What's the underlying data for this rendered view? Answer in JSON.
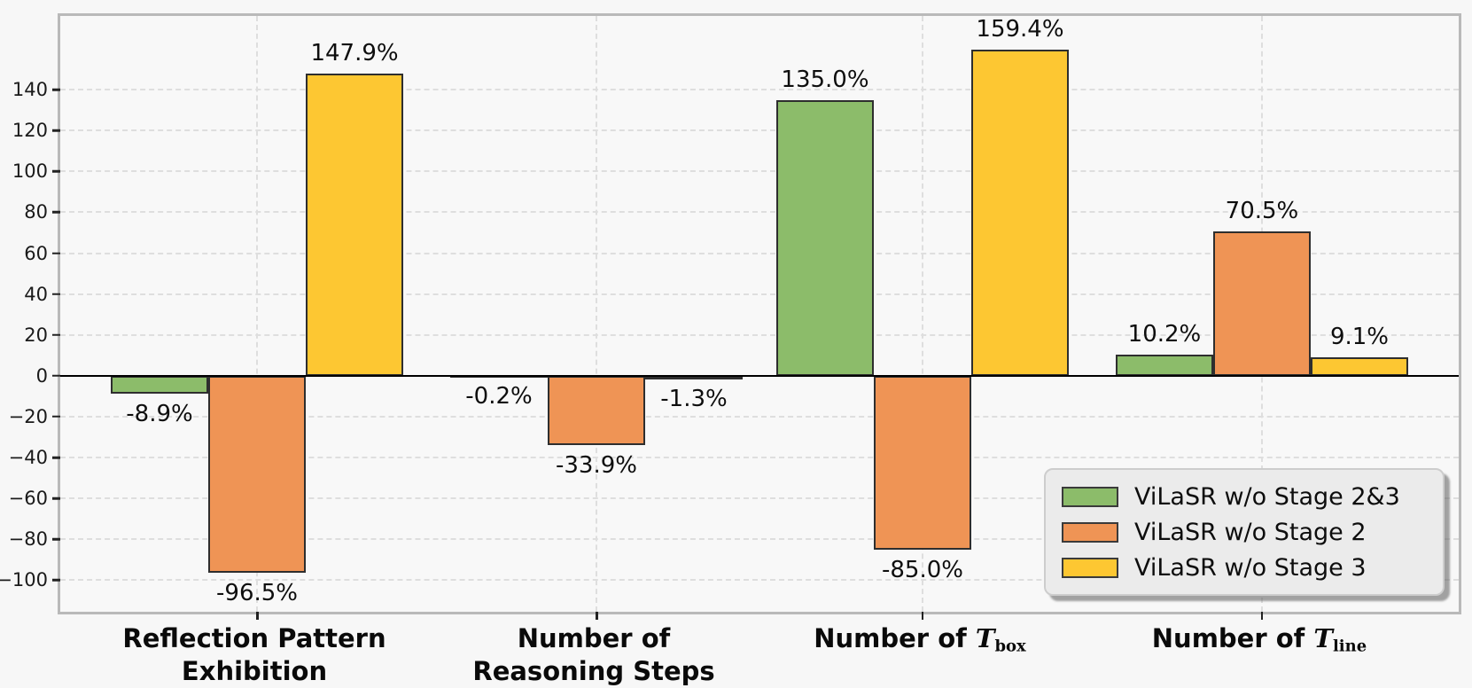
{
  "chart_data": {
    "type": "bar",
    "title": "",
    "xlabel": "",
    "ylabel": "",
    "value_suffix": "%",
    "ylim": [
      -115.4,
      176
    ],
    "yticks": [
      -100,
      -80,
      -60,
      -40,
      -20,
      0,
      20,
      40,
      60,
      80,
      100,
      120,
      140
    ],
    "grid": true,
    "legend_position": "lower right",
    "plot_background": "#f8f8f8",
    "figure_background": "#f7f7f7",
    "categories": [
      {
        "id": "reflection-pattern-exhibition",
        "label_lines": [
          "Reflection Pattern",
          "Exhibition"
        ]
      },
      {
        "id": "number-of-reasoning-steps",
        "label_lines": [
          "Number of",
          "Reasoning Steps"
        ]
      },
      {
        "id": "number-of-t-box",
        "label_lines": [
          "Number of"
        ],
        "math_symbol": "T",
        "math_sub": "box"
      },
      {
        "id": "number-of-t-line",
        "label_lines": [
          "Number of"
        ],
        "math_symbol": "T",
        "math_sub": "line"
      }
    ],
    "series": [
      {
        "name": "ViLaSR w/o Stage 2&3",
        "color": "#8cbc6a",
        "values": [
          -8.9,
          -0.2,
          135.0,
          10.2
        ]
      },
      {
        "name": "ViLaSR w/o Stage 2",
        "color": "#ef9455",
        "values": [
          -96.5,
          -33.9,
          -85.0,
          70.5
        ]
      },
      {
        "name": "ViLaSR w/o Stage 3",
        "color": "#fdc732",
        "values": [
          147.9,
          -1.3,
          159.4,
          9.1
        ]
      }
    ],
    "value_labels": {
      "ViLaSR w/o Stage 2&3": [
        "-8.9%",
        "-0.2%",
        "135.0%",
        "10.2%"
      ],
      "ViLaSR w/o Stage 2": [
        "-96.5%",
        "-33.9%",
        "-85.0%",
        "70.5%"
      ],
      "ViLaSR w/o Stage 3": [
        "147.9%",
        "-1.3%",
        "159.4%",
        "9.1%"
      ]
    }
  }
}
